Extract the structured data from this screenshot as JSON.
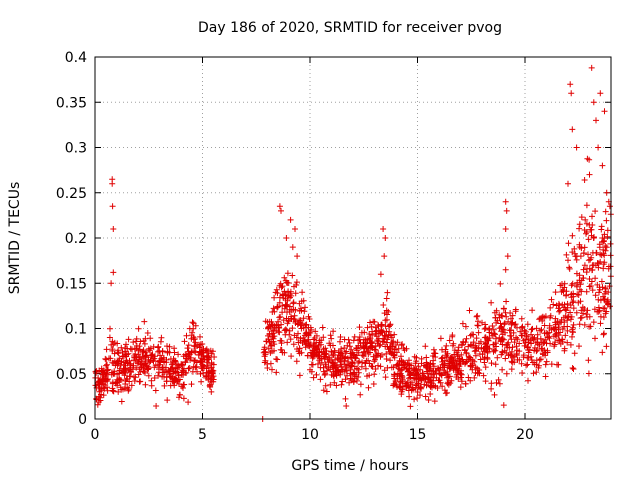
{
  "chart_data": {
    "type": "scatter",
    "title": "Day 186 of 2020, SRMTID for receiver pvog",
    "xlabel": "GPS time / hours",
    "ylabel": "SRMTID / TECUs",
    "xlim": [
      0,
      24
    ],
    "ylim": [
      0,
      0.4
    ],
    "x_ticks": [
      0,
      5,
      10,
      15,
      20
    ],
    "x_tick_labels": [
      "0",
      "5",
      "10",
      "15",
      "20"
    ],
    "y_ticks": [
      0,
      0.05,
      0.1,
      0.15,
      0.2,
      0.25,
      0.3,
      0.35,
      0.4
    ],
    "y_tick_labels": [
      "0",
      "0.05",
      "0.1",
      "0.15",
      "0.2",
      "0.25",
      "0.3",
      "0.35",
      "0.4"
    ],
    "grid": true,
    "marker": "plus",
    "series": [
      {
        "name": "SRMTID",
        "color": "#e00000",
        "profile": [
          {
            "t": 0.0,
            "y": 0.04,
            "spread": 0.03
          },
          {
            "t": 0.2,
            "y": 0.03,
            "spread": 0.025
          },
          {
            "t": 0.5,
            "y": 0.05,
            "spread": 0.03
          },
          {
            "t": 0.8,
            "y": 0.06,
            "spread": 0.04
          },
          {
            "t": 1.2,
            "y": 0.05,
            "spread": 0.03
          },
          {
            "t": 2.0,
            "y": 0.07,
            "spread": 0.035
          },
          {
            "t": 3.0,
            "y": 0.06,
            "spread": 0.03
          },
          {
            "t": 4.0,
            "y": 0.05,
            "spread": 0.03
          },
          {
            "t": 4.5,
            "y": 0.08,
            "spread": 0.035
          },
          {
            "t": 5.5,
            "y": 0.05,
            "spread": 0.02
          },
          {
            "t": 7.9,
            "y": 0.08,
            "spread": 0.03
          },
          {
            "t": 8.8,
            "y": 0.12,
            "spread": 0.06
          },
          {
            "t": 9.3,
            "y": 0.12,
            "spread": 0.06
          },
          {
            "t": 10.0,
            "y": 0.08,
            "spread": 0.03
          },
          {
            "t": 11.0,
            "y": 0.06,
            "spread": 0.03
          },
          {
            "t": 12.0,
            "y": 0.06,
            "spread": 0.03
          },
          {
            "t": 13.0,
            "y": 0.08,
            "spread": 0.04
          },
          {
            "t": 13.5,
            "y": 0.1,
            "spread": 0.05
          },
          {
            "t": 14.0,
            "y": 0.06,
            "spread": 0.03
          },
          {
            "t": 15.0,
            "y": 0.045,
            "spread": 0.025
          },
          {
            "t": 16.0,
            "y": 0.055,
            "spread": 0.03
          },
          {
            "t": 17.0,
            "y": 0.06,
            "spread": 0.03
          },
          {
            "t": 18.0,
            "y": 0.08,
            "spread": 0.035
          },
          {
            "t": 19.0,
            "y": 0.09,
            "spread": 0.05
          },
          {
            "t": 20.0,
            "y": 0.08,
            "spread": 0.04
          },
          {
            "t": 21.0,
            "y": 0.09,
            "spread": 0.05
          },
          {
            "t": 22.0,
            "y": 0.12,
            "spread": 0.07
          },
          {
            "t": 23.0,
            "y": 0.17,
            "spread": 0.1
          },
          {
            "t": 24.0,
            "y": 0.15,
            "spread": 0.08
          }
        ],
        "segments": [
          [
            0.0,
            5.55
          ],
          [
            7.85,
            24.0
          ]
        ],
        "spikes": [
          {
            "t": 0.8,
            "y": 0.265
          },
          {
            "t": 0.8,
            "y": 0.26
          },
          {
            "t": 0.82,
            "y": 0.235
          },
          {
            "t": 0.85,
            "y": 0.21
          },
          {
            "t": 0.85,
            "y": 0.162
          },
          {
            "t": 0.75,
            "y": 0.15
          },
          {
            "t": 8.6,
            "y": 0.235
          },
          {
            "t": 8.65,
            "y": 0.23
          },
          {
            "t": 8.9,
            "y": 0.2
          },
          {
            "t": 9.1,
            "y": 0.22
          },
          {
            "t": 9.3,
            "y": 0.21
          },
          {
            "t": 9.2,
            "y": 0.19
          },
          {
            "t": 9.4,
            "y": 0.18
          },
          {
            "t": 13.4,
            "y": 0.21
          },
          {
            "t": 13.5,
            "y": 0.2
          },
          {
            "t": 13.45,
            "y": 0.18
          },
          {
            "t": 13.3,
            "y": 0.16
          },
          {
            "t": 19.1,
            "y": 0.24
          },
          {
            "t": 19.15,
            "y": 0.23
          },
          {
            "t": 19.1,
            "y": 0.21
          },
          {
            "t": 19.2,
            "y": 0.18
          },
          {
            "t": 19.1,
            "y": 0.165
          },
          {
            "t": 22.1,
            "y": 0.37
          },
          {
            "t": 22.15,
            "y": 0.36
          },
          {
            "t": 22.2,
            "y": 0.32
          },
          {
            "t": 22.0,
            "y": 0.26
          },
          {
            "t": 22.4,
            "y": 0.3
          },
          {
            "t": 23.1,
            "y": 0.388
          },
          {
            "t": 23.2,
            "y": 0.35
          },
          {
            "t": 23.3,
            "y": 0.33
          },
          {
            "t": 23.4,
            "y": 0.3
          },
          {
            "t": 23.5,
            "y": 0.36
          },
          {
            "t": 23.7,
            "y": 0.34
          },
          {
            "t": 23.6,
            "y": 0.28
          },
          {
            "t": 23.8,
            "y": 0.25
          },
          {
            "t": 23.9,
            "y": 0.24
          },
          {
            "t": 23.95,
            "y": 0.235
          },
          {
            "t": 23.0,
            "y": 0.27
          },
          {
            "t": 22.8,
            "y": 0.22
          },
          {
            "t": 23.2,
            "y": 0.2
          },
          {
            "t": 22.6,
            "y": 0.18
          },
          {
            "t": 23.6,
            "y": 0.2
          }
        ],
        "outliers": [
          {
            "t": 7.8,
            "y": 0.0
          }
        ]
      }
    ]
  }
}
